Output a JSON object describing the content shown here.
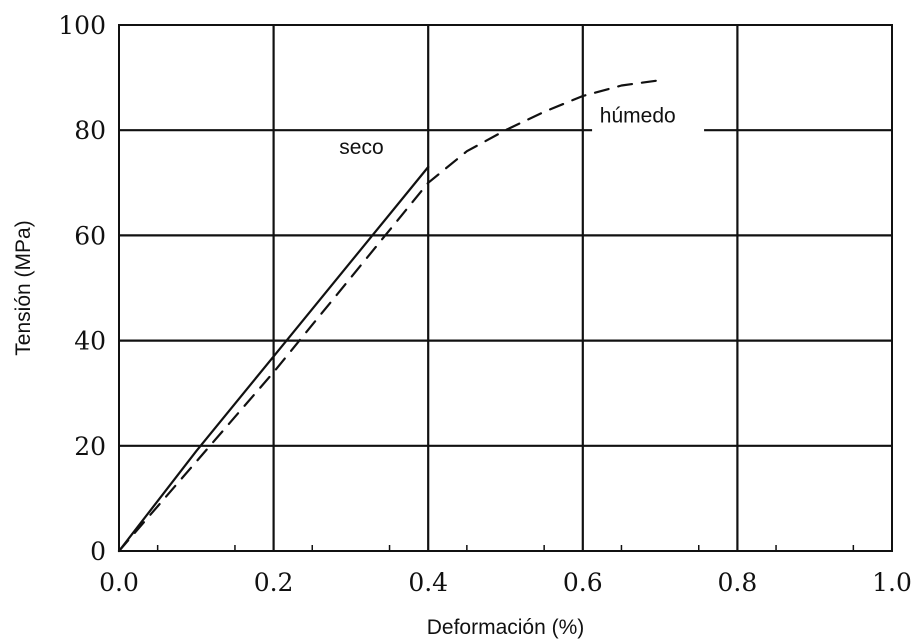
{
  "chart_data": {
    "type": "line",
    "xlabel": "Deformación (%)",
    "ylabel": "Tensión (MPa)",
    "xlim": [
      0,
      1.0
    ],
    "ylim": [
      0,
      100
    ],
    "x_ticks": [
      "0.0",
      "0.2",
      "0.4",
      "0.6",
      "0.8",
      "1.0"
    ],
    "y_ticks": [
      "0",
      "20",
      "40",
      "60",
      "80",
      "100"
    ],
    "grid": true,
    "series": [
      {
        "name": "seco",
        "style": "solid",
        "color": "#111111",
        "x": [
          0.0,
          0.1,
          0.2,
          0.3,
          0.4
        ],
        "y": [
          0,
          19,
          37,
          55,
          73
        ]
      },
      {
        "name": "húmedo",
        "style": "dashed",
        "color": "#111111",
        "x": [
          0.0,
          0.1,
          0.2,
          0.3,
          0.4,
          0.45,
          0.5,
          0.55,
          0.6,
          0.65,
          0.7
        ],
        "y": [
          0,
          17,
          34,
          52,
          70,
          76,
          80,
          83.5,
          86.5,
          88.5,
          89.5
        ]
      }
    ]
  }
}
